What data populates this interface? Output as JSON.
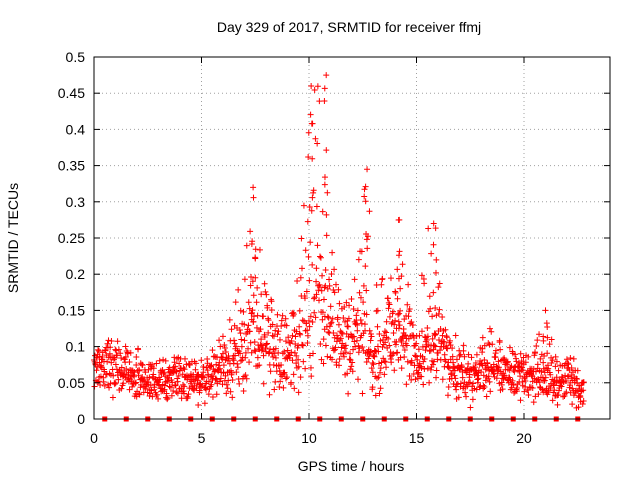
{
  "chart_data": {
    "type": "scatter",
    "title": "Day 329 of 2017, SRMTID for receiver ffmj",
    "xlabel": "GPS time / hours",
    "ylabel": "SRMTID / TECUs",
    "xlim": [
      0,
      24
    ],
    "ylim": [
      0,
      0.5
    ],
    "x_ticks": [
      "0",
      "5",
      "10",
      "15",
      "20"
    ],
    "x_tick_values": [
      0,
      5,
      10,
      15,
      20
    ],
    "y_ticks": [
      "0",
      "0.05",
      "0.1",
      "0.15",
      "0.2",
      "0.25",
      "0.3",
      "0.35",
      "0.4",
      "0.45",
      "0.5"
    ],
    "y_tick_values": [
      0,
      0.05,
      0.1,
      0.15,
      0.2,
      0.25,
      0.3,
      0.35,
      0.4,
      0.45,
      0.5
    ],
    "grid": true,
    "marker_color": "#ff0000",
    "series": [
      {
        "name": "SRMTID",
        "marker": "plus",
        "approximate_envelope": {
          "x": [
            0,
            0.5,
            1,
            1.5,
            2,
            2.5,
            3,
            3.5,
            4,
            4.5,
            5,
            5.5,
            6,
            6.5,
            7,
            7.5,
            8,
            8.5,
            9,
            9.5,
            10,
            10.5,
            11,
            11.5,
            12,
            12.5,
            13,
            13.5,
            14,
            14.5,
            15,
            15.5,
            16,
            16.5,
            17,
            17.5,
            18,
            18.5,
            19,
            19.5,
            20,
            20.5,
            21,
            21.5,
            22,
            22.5
          ],
          "typical": [
            0.065,
            0.07,
            0.07,
            0.065,
            0.055,
            0.05,
            0.05,
            0.05,
            0.055,
            0.055,
            0.05,
            0.055,
            0.065,
            0.07,
            0.1,
            0.13,
            0.09,
            0.08,
            0.085,
            0.1,
            0.15,
            0.15,
            0.13,
            0.11,
            0.11,
            0.12,
            0.07,
            0.09,
            0.12,
            0.1,
            0.08,
            0.09,
            0.11,
            0.07,
            0.06,
            0.055,
            0.06,
            0.07,
            0.065,
            0.06,
            0.055,
            0.055,
            0.05,
            0.05,
            0.05,
            0.04
          ],
          "peak": [
            0.1,
            0.11,
            0.12,
            0.1,
            0.1,
            0.09,
            0.09,
            0.09,
            0.105,
            0.09,
            0.09,
            0.1,
            0.12,
            0.15,
            0.24,
            0.32,
            0.18,
            0.15,
            0.14,
            0.2,
            0.46,
            0.475,
            0.24,
            0.18,
            0.17,
            0.345,
            0.2,
            0.25,
            0.275,
            0.2,
            0.14,
            0.27,
            0.2,
            0.13,
            0.12,
            0.1,
            0.12,
            0.13,
            0.1,
            0.1,
            0.095,
            0.1,
            0.15,
            0.1,
            0.1,
            0.08
          ]
        },
        "notable_peaks": [
          {
            "x": 7.4,
            "y": 0.32
          },
          {
            "x": 10.1,
            "y": 0.46
          },
          {
            "x": 10.8,
            "y": 0.475
          },
          {
            "x": 12.7,
            "y": 0.345
          },
          {
            "x": 14.2,
            "y": 0.275
          },
          {
            "x": 15.8,
            "y": 0.27
          },
          {
            "x": 21.0,
            "y": 0.15
          }
        ]
      },
      {
        "name": "baseline markers",
        "marker": "square",
        "x": [
          0.5,
          1.5,
          2.5,
          3.5,
          4.5,
          5.5,
          6.5,
          7.5,
          8.5,
          9.5,
          10.5,
          11.5,
          12.5,
          13.5,
          14.5,
          15.5,
          16.5,
          17.5,
          18.5,
          19.5,
          20.5,
          21.5,
          22.5
        ],
        "y": [
          0,
          0,
          0,
          0,
          0,
          0,
          0,
          0,
          0,
          0,
          0,
          0,
          0,
          0,
          0,
          0,
          0,
          0,
          0,
          0,
          0,
          0,
          0
        ]
      }
    ]
  }
}
